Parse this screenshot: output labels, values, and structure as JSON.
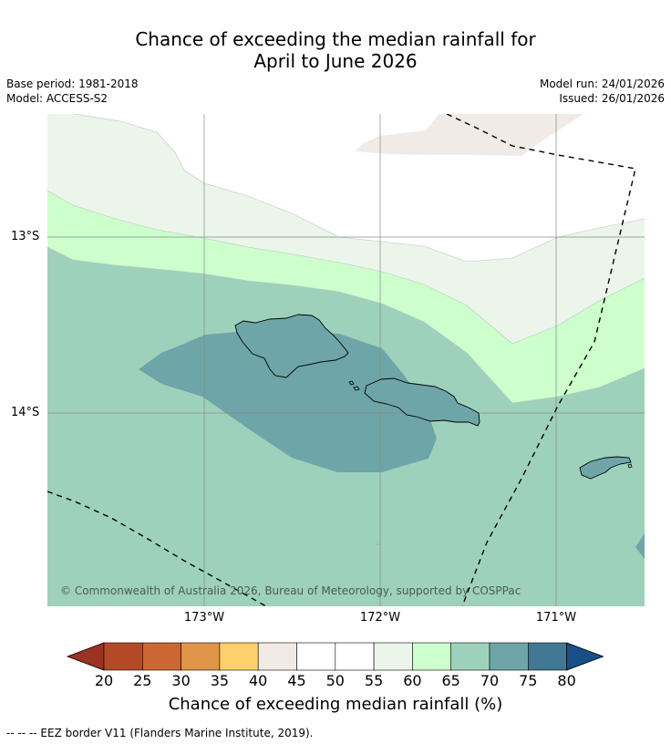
{
  "title": {
    "line1": "Chance of exceeding the median rainfall for",
    "line2": "April to June 2026"
  },
  "meta": {
    "base_period": "Base period: 1981-2018",
    "model": "Model: ACCESS-S2",
    "model_run": "Model run: 24/01/2026",
    "issued": "Issued: 26/01/2026"
  },
  "map": {
    "lat_labels": [
      "13°S",
      "14°S"
    ],
    "lon_labels": [
      "173°W",
      "172°W",
      "171°W"
    ],
    "copyright": "© Commonwealth of Australia 2026, Bureau of Meteorology, supported by COSPPac",
    "colors": {
      "c40_45": "#f0ebe6",
      "c45_55": "#ffffff",
      "c55_60": "#ebf5ea",
      "c60_65": "#ccffcc",
      "c65_70": "#9ed1bb",
      "c70_75": "#6ea5a8"
    }
  },
  "colorbar": {
    "ticks": [
      "20",
      "25",
      "30",
      "35",
      "40",
      "45",
      "50",
      "55",
      "60",
      "65",
      "70",
      "75",
      "80"
    ],
    "colors": [
      "#9b3222",
      "#b34a25",
      "#cc6633",
      "#e09548",
      "#fdd06a",
      "#f0ebe6",
      "#ffffff",
      "#ffffff",
      "#ebf5ea",
      "#ccffcc",
      "#9ed1bb",
      "#6ea5a8",
      "#417893",
      "#174f86"
    ],
    "label": "Chance of exceeding median rainfall (%)"
  },
  "footnote": "--  --  -- EEZ border V11 (Flanders Marine Institute, 2019)."
}
